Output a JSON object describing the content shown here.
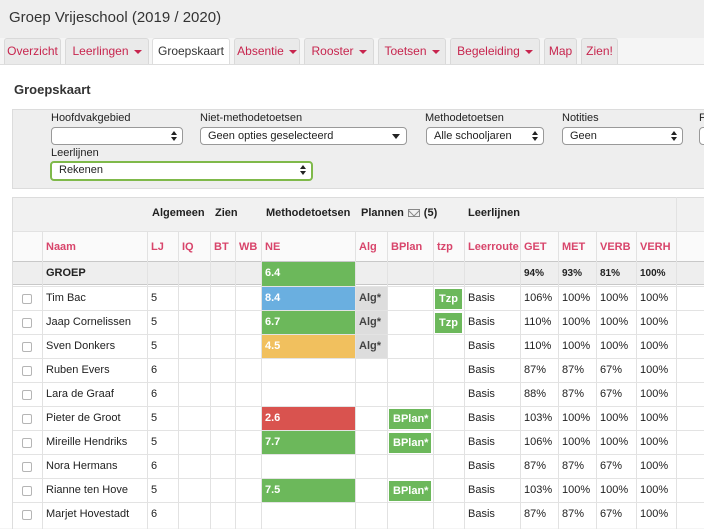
{
  "app": {
    "title": "Groep Vrijeschool (2019 / 2020)"
  },
  "tabs": [
    {
      "label": "Overzicht",
      "dropdown": false,
      "active": false
    },
    {
      "label": "Leerlingen",
      "dropdown": true,
      "active": false
    },
    {
      "label": "Groepskaart",
      "dropdown": false,
      "active": true
    },
    {
      "label": "Absentie",
      "dropdown": true,
      "active": false
    },
    {
      "label": "Rooster",
      "dropdown": true,
      "active": false
    },
    {
      "label": "Toetsen",
      "dropdown": true,
      "active": false
    },
    {
      "label": "Begeleiding",
      "dropdown": true,
      "active": false
    },
    {
      "label": "Map",
      "dropdown": false,
      "active": false
    },
    {
      "label": "Zien!",
      "dropdown": false,
      "active": false
    }
  ],
  "page": {
    "title": "Groepskaart"
  },
  "filters": {
    "hoofdvak": {
      "label": "Hoofdvakgebied",
      "value": ""
    },
    "niet_methode": {
      "label": "Niet-methodetoetsen",
      "value": "Geen opties geselecteerd"
    },
    "methode": {
      "label": "Methodetoetsen",
      "value": "Alle schooljaren"
    },
    "notities": {
      "label": "Notities",
      "value": "Geen"
    },
    "extra": {
      "label": "F",
      "value": ""
    },
    "leerlijnen": {
      "label": "Leerlijnen",
      "value": "Rekenen"
    }
  },
  "table": {
    "groups": {
      "algemeen": "Algemeen",
      "zien": "Zien",
      "methode": "Methodetoetsen",
      "plannen": "Plannen",
      "plannen_count": "(5)",
      "leerlijnen": "Leerlijnen"
    },
    "columns": {
      "naam": "Naam",
      "lj": "LJ",
      "iq": "IQ",
      "bt": "BT",
      "wb": "WB",
      "ne": "NE",
      "alg": "Alg",
      "bplan": "BPlan",
      "tzp": "tzp",
      "leerroute": "Leerroute",
      "get": "GET",
      "met": "MET",
      "verb": "VERB",
      "verh": "VERH"
    },
    "group_row": {
      "name": "GROEP",
      "ne": "6.4",
      "get": "94%",
      "met": "93%",
      "verb": "81%",
      "verh": "100%"
    },
    "rows": [
      {
        "name": "Tim Bac",
        "lj": "5",
        "ne": "8.4",
        "ne_color": "#6aafe0",
        "alg": "Alg*",
        "bplan": "",
        "tzp": "Tzp",
        "leerroute": "Basis",
        "get": "106%",
        "met": "100%",
        "verb": "100%",
        "verh": "100%"
      },
      {
        "name": "Jaap Cornelissen",
        "lj": "5",
        "ne": "6.7",
        "ne_color": "#6cb85b",
        "alg": "Alg*",
        "bplan": "",
        "tzp": "Tzp",
        "leerroute": "Basis",
        "get": "110%",
        "met": "100%",
        "verb": "100%",
        "verh": "100%"
      },
      {
        "name": "Sven Donkers",
        "lj": "5",
        "ne": "4.5",
        "ne_color": "#f1c05e",
        "alg": "Alg*",
        "bplan": "",
        "tzp": "",
        "leerroute": "Basis",
        "get": "110%",
        "met": "100%",
        "verb": "100%",
        "verh": "100%"
      },
      {
        "name": "Ruben Evers",
        "lj": "6",
        "ne": "",
        "ne_color": "",
        "alg": "",
        "bplan": "",
        "tzp": "",
        "leerroute": "Basis",
        "get": "87%",
        "met": "87%",
        "verb": "67%",
        "verh": "100%"
      },
      {
        "name": "Lara de Graaf",
        "lj": "6",
        "ne": "",
        "ne_color": "",
        "alg": "",
        "bplan": "",
        "tzp": "",
        "leerroute": "Basis",
        "get": "88%",
        "met": "87%",
        "verb": "67%",
        "verh": "100%"
      },
      {
        "name": "Pieter de Groot",
        "lj": "5",
        "ne": "2.6",
        "ne_color": "#d9534f",
        "alg": "",
        "bplan": "BPlan*",
        "tzp": "",
        "leerroute": "Basis",
        "get": "103%",
        "met": "100%",
        "verb": "100%",
        "verh": "100%"
      },
      {
        "name": "Mireille Hendriks",
        "lj": "5",
        "ne": "7.7",
        "ne_color": "#6cb85b",
        "alg": "",
        "bplan": "BPlan*",
        "tzp": "",
        "leerroute": "Basis",
        "get": "106%",
        "met": "100%",
        "verb": "100%",
        "verh": "100%"
      },
      {
        "name": "Nora Hermans",
        "lj": "6",
        "ne": "",
        "ne_color": "",
        "alg": "",
        "bplan": "",
        "tzp": "",
        "leerroute": "Basis",
        "get": "87%",
        "met": "87%",
        "verb": "67%",
        "verh": "100%"
      },
      {
        "name": "Rianne ten Hove",
        "lj": "5",
        "ne": "7.5",
        "ne_color": "#6cb85b",
        "alg": "",
        "bplan": "BPlan*",
        "tzp": "",
        "leerroute": "Basis",
        "get": "103%",
        "met": "100%",
        "verb": "100%",
        "verh": "100%"
      },
      {
        "name": "Marjet Hovestadt",
        "lj": "6",
        "ne": "",
        "ne_color": "",
        "alg": "",
        "bplan": "",
        "tzp": "",
        "leerroute": "Basis",
        "get": "87%",
        "met": "87%",
        "verb": "67%",
        "verh": "100%"
      }
    ]
  },
  "colors": {
    "accent": "#c7254e",
    "header_pink": "#d8456b",
    "green": "#6cb85b",
    "blue": "#6aafe0",
    "yellow": "#f1c05e",
    "red": "#d9534f",
    "alg_bg": "#dddddd"
  }
}
